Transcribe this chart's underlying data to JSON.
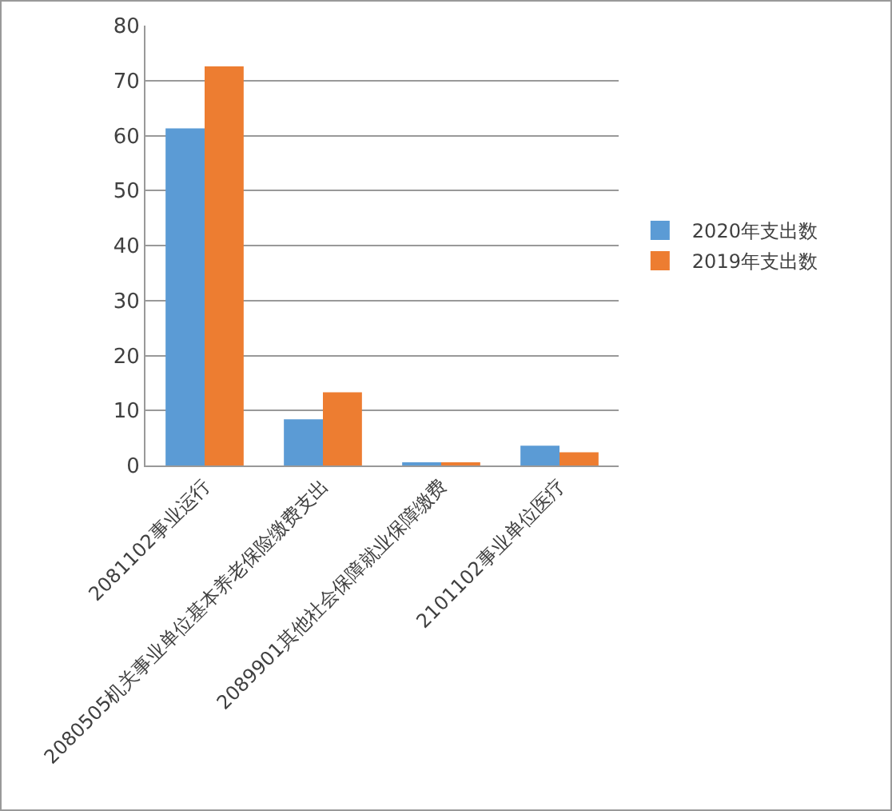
{
  "chart_data": {
    "type": "bar",
    "categories": [
      "2081102事业运行",
      "2080505机关事业单位基本养老保险缴费支出",
      "2089901其他社会保障就业保障缴费",
      "2101102事业单位医疗"
    ],
    "series": [
      {
        "name": "2020年支出数",
        "color": "#5b9bd5",
        "values": [
          61.3,
          8.4,
          0.3,
          3.6
        ]
      },
      {
        "name": "2019年支出数",
        "color": "#ed7d31",
        "values": [
          72.6,
          13.3,
          0.3,
          2.4
        ]
      }
    ],
    "ylim": [
      0,
      80
    ],
    "yticks": [
      0,
      10,
      20,
      30,
      40,
      50,
      60,
      70,
      80
    ],
    "grid": "y",
    "legend": "right"
  }
}
